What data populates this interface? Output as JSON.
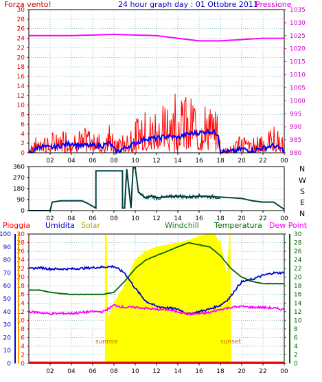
{
  "header": {
    "left_label": "Forza vento!",
    "title": "24 hour graph day : 01 Ottobre 2011",
    "right_label": "Pressione"
  },
  "colors": {
    "background": "#ffffff",
    "frame": "#000000",
    "grid": "#5f9ea0",
    "wind_speed": "#ff0000",
    "wind_gust": "#ff0000",
    "wind_avg": "#0000ff",
    "pressure": "#ff00ff",
    "direction": "#004040",
    "solar": "#ffff00",
    "humidity": "#0000cc",
    "windchill": "#1a7a1a",
    "temperature": "#006600",
    "dewpoint": "#ff00ff",
    "rain": "#ff0000",
    "left_axis_top": "#cc0000",
    "right_axis_top": "#cc00cc",
    "hum_axis": "#0000cc",
    "temp_axis": "#006600",
    "rain_axis": "#ff0000",
    "solar_axis": "#ff9900",
    "sunrise_text": "#cc6600"
  },
  "labels": {
    "pioggia": "Pioggia",
    "umidita": "Umidita",
    "solar": "Solar",
    "windchill": "Windchill",
    "temperatura": "Temperatura",
    "dewpoint": "Dew Point",
    "sunrise": "sunrise",
    "sunset": "sunset"
  },
  "compass": [
    "N",
    "W",
    "S",
    "E",
    "N"
  ],
  "chart_data": [
    {
      "type": "line",
      "name": "wind",
      "x_unit": "hour",
      "x_ticks": [
        "02",
        "04",
        "06",
        "08",
        "10",
        "12",
        "14",
        "16",
        "18",
        "20",
        "22",
        "00"
      ],
      "y_left_ticks": [
        "0",
        "2",
        "4",
        "6",
        "8",
        "10",
        "12",
        "14",
        "16",
        "18",
        "20",
        "22",
        "24",
        "26",
        "28",
        "30"
      ],
      "y_right_ticks": [
        "980",
        "985",
        "990",
        "995",
        "1000",
        "1005",
        "1010",
        "1015",
        "1020",
        "1025",
        "1030",
        "1035"
      ],
      "ylim_left": [
        0,
        30
      ],
      "ylim_right": [
        980,
        1035
      ],
      "series": [
        {
          "name": "Pressione",
          "axis": "right",
          "points": [
            [
              0,
              1025
            ],
            [
              4,
              1025
            ],
            [
              8,
              1025.5
            ],
            [
              12,
              1025
            ],
            [
              14,
              1024
            ],
            [
              16,
              1023
            ],
            [
              18,
              1023
            ],
            [
              20,
              1023.5
            ],
            [
              22,
              1024
            ],
            [
              24,
              1024
            ]
          ]
        },
        {
          "name": "Forza vento!",
          "axis": "left",
          "envelope": [
            [
              0,
              2
            ],
            [
              1,
              4
            ],
            [
              2,
              4
            ],
            [
              3,
              5
            ],
            [
              4,
              4.5
            ],
            [
              5,
              5
            ],
            [
              6,
              5.5
            ],
            [
              7,
              5
            ],
            [
              7.6,
              6
            ],
            [
              8,
              3
            ],
            [
              9,
              4
            ],
            [
              10,
              7
            ],
            [
              11,
              9
            ],
            [
              12,
              10
            ],
            [
              13,
              12
            ],
            [
              14,
              14
            ],
            [
              15,
              12
            ],
            [
              16,
              10
            ],
            [
              17,
              10
            ],
            [
              17.8,
              8
            ],
            [
              18,
              1
            ],
            [
              19,
              1.5
            ],
            [
              20,
              4
            ],
            [
              21,
              3
            ],
            [
              22,
              5
            ],
            [
              23,
              6
            ],
            [
              24,
              3
            ]
          ]
        },
        {
          "axis": "left",
          "points": [
            [
              0,
              0
            ],
            [
              0.5,
              0.5
            ],
            [
              1,
              1.5
            ],
            [
              2,
              1
            ],
            [
              3,
              1.5
            ],
            [
              4,
              2
            ],
            [
              5,
              1.5
            ],
            [
              6,
              1.5
            ],
            [
              7,
              1.5
            ],
            [
              7.6,
              2
            ],
            [
              8.2,
              0.2
            ],
            [
              9,
              1
            ],
            [
              10,
              2
            ],
            [
              11,
              3
            ],
            [
              12,
              3
            ],
            [
              13,
              3.5
            ],
            [
              14,
              3.2
            ],
            [
              15,
              4
            ],
            [
              16,
              4.2
            ],
            [
              17,
              4.5
            ],
            [
              17.8,
              4
            ],
            [
              18,
              0.3
            ],
            [
              19,
              0.2
            ],
            [
              20,
              0.8
            ],
            [
              21,
              0.5
            ],
            [
              22,
              1
            ],
            [
              23,
              1.5
            ],
            [
              24,
              0.5
            ]
          ]
        }
      ]
    },
    {
      "type": "line",
      "name": "wind_direction",
      "x_unit": "hour",
      "y_ticks": [
        "0",
        "90",
        "180",
        "270",
        "360"
      ],
      "ylim": [
        0,
        360
      ],
      "series": [
        {
          "points": [
            [
              0,
              0
            ],
            [
              1,
              0
            ],
            [
              2,
              0
            ],
            [
              2.2,
              70
            ],
            [
              3,
              80
            ],
            [
              4,
              80
            ],
            [
              5,
              80
            ],
            [
              5.5,
              60
            ],
            [
              6.3,
              20
            ],
            [
              6.3,
              325
            ],
            [
              7,
              325
            ],
            [
              8,
              325
            ],
            [
              8.8,
              325
            ],
            [
              8.8,
              20
            ],
            [
              9.0,
              20
            ],
            [
              9.2,
              340
            ],
            [
              9.6,
              20
            ],
            [
              9.8,
              350
            ],
            [
              10,
              350
            ],
            [
              10.3,
              150
            ],
            [
              11,
              100
            ],
            [
              11.5,
              120
            ],
            [
              12,
              105
            ],
            [
              13,
              110
            ],
            [
              14,
              120
            ],
            [
              15,
              110
            ],
            [
              16,
              120
            ],
            [
              17,
              115
            ],
            [
              18,
              110
            ],
            [
              19,
              105
            ],
            [
              20,
              100
            ],
            [
              21,
              80
            ],
            [
              22,
              70
            ],
            [
              23,
              70
            ],
            [
              24,
              10
            ]
          ]
        }
      ]
    },
    {
      "type": "line",
      "name": "weather",
      "x_unit": "hour",
      "y_hum_ticks": [
        "0",
        "10",
        "20",
        "30",
        "40",
        "50",
        "60",
        "70",
        "80",
        "90",
        "100"
      ],
      "y_rain_ticks": [
        "0",
        "2",
        "4",
        "6",
        "8",
        "10",
        "12",
        "14",
        "16",
        "18",
        "20",
        "22",
        "24",
        "26",
        "28",
        "30"
      ],
      "y_temp_ticks": [
        "0",
        "2",
        "4",
        "6",
        "8",
        "10",
        "12",
        "14",
        "16",
        "18",
        "20",
        "22",
        "24",
        "26",
        "28",
        "30"
      ],
      "ylim_hum": [
        0,
        100
      ],
      "ylim_temp": [
        0,
        30
      ],
      "sunrise_hour": 7.2,
      "sunset_hour": 18.9,
      "series": [
        {
          "name": "Solar",
          "axis": "temp",
          "points": [
            [
              7.2,
              0
            ],
            [
              7.3,
              30
            ],
            [
              7.4,
              10
            ],
            [
              8,
              14
            ],
            [
              9,
              18
            ],
            [
              10,
              24
            ],
            [
              11,
              26
            ],
            [
              12,
              27
            ],
            [
              13,
              27.5
            ],
            [
              14,
              28
            ],
            [
              15,
              28.5
            ],
            [
              16,
              29.5
            ],
            [
              17,
              30
            ],
            [
              17.4,
              30
            ],
            [
              18,
              28
            ],
            [
              18.6,
              20
            ],
            [
              18.9,
              30
            ],
            [
              19.0,
              0
            ]
          ]
        },
        {
          "name": "Umidita",
          "axis": "hum",
          "points": [
            [
              0,
              73
            ],
            [
              1,
              74
            ],
            [
              2,
              73
            ],
            [
              4,
              73
            ],
            [
              6,
              74
            ],
            [
              8,
              75
            ],
            [
              9,
              70
            ],
            [
              10,
              58
            ],
            [
              11,
              48
            ],
            [
              12,
              44
            ],
            [
              14,
              42
            ],
            [
              15,
              38
            ],
            [
              16,
              40
            ],
            [
              17,
              42
            ],
            [
              18,
              45
            ],
            [
              18.8,
              50
            ],
            [
              19.5,
              58
            ],
            [
              20,
              63
            ],
            [
              21,
              65
            ],
            [
              22,
              68
            ],
            [
              23,
              70
            ],
            [
              24,
              70
            ]
          ]
        },
        {
          "name": "Windchill",
          "axis": "temp",
          "points": [
            [
              0,
              17
            ],
            [
              1,
              17
            ],
            [
              2,
              16.5
            ],
            [
              3,
              16.2
            ],
            [
              4,
              16
            ],
            [
              5,
              16
            ],
            [
              6,
              16
            ],
            [
              7,
              16
            ],
            [
              8,
              16.5
            ],
            [
              9,
              19
            ],
            [
              10,
              22
            ],
            [
              11,
              24
            ],
            [
              12,
              25
            ],
            [
              13,
              26
            ],
            [
              14,
              27
            ],
            [
              15,
              28
            ],
            [
              16,
              27.5
            ],
            [
              17,
              27
            ],
            [
              18,
              25
            ],
            [
              19,
              22
            ],
            [
              20,
              20
            ],
            [
              21,
              19
            ],
            [
              22,
              18.5
            ],
            [
              23,
              18.5
            ],
            [
              24,
              18.5
            ]
          ]
        },
        {
          "name": "Temperatura",
          "axis": "temp",
          "points": [
            [
              0,
              17
            ],
            [
              1,
              17
            ],
            [
              2,
              16.5
            ],
            [
              3,
              16.2
            ],
            [
              4,
              16
            ],
            [
              5,
              16
            ],
            [
              6,
              16
            ],
            [
              7,
              16
            ],
            [
              8,
              16.5
            ],
            [
              9,
              19
            ],
            [
              10,
              22
            ],
            [
              11,
              24
            ],
            [
              12,
              25
            ],
            [
              13,
              26
            ],
            [
              14,
              27
            ],
            [
              15,
              28
            ],
            [
              16,
              27.5
            ],
            [
              17,
              27
            ],
            [
              18,
              25
            ],
            [
              19,
              22
            ],
            [
              20,
              20
            ],
            [
              21,
              19
            ],
            [
              22,
              18.5
            ],
            [
              23,
              18.5
            ],
            [
              24,
              18.5
            ]
          ]
        },
        {
          "name": "Dew Point",
          "axis": "temp",
          "points": [
            [
              0,
              12
            ],
            [
              1,
              11.8
            ],
            [
              2,
              11.5
            ],
            [
              3,
              11.6
            ],
            [
              4,
              11.6
            ],
            [
              5,
              11.8
            ],
            [
              6,
              12
            ],
            [
              7,
              12
            ],
            [
              8,
              13.5
            ],
            [
              9,
              13
            ],
            [
              10,
              13
            ],
            [
              11,
              12.8
            ],
            [
              12,
              12.5
            ],
            [
              13,
              12.5
            ],
            [
              14,
              12
            ],
            [
              15,
              11.5
            ],
            [
              16,
              11.5
            ],
            [
              17,
              11.8
            ],
            [
              18,
              12.5
            ],
            [
              19,
              13
            ],
            [
              20,
              13.2
            ],
            [
              21,
              13
            ],
            [
              22,
              13
            ],
            [
              23,
              12.8
            ],
            [
              24,
              12.5
            ]
          ]
        },
        {
          "name": "Pioggia",
          "axis": "rain",
          "points": [
            [
              0,
              0
            ],
            [
              24,
              0
            ]
          ]
        }
      ]
    }
  ]
}
